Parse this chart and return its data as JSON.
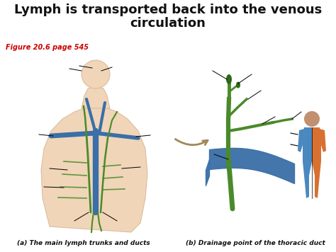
{
  "title_line1": "Lymph is transported back into the venous",
  "title_line2": "circulation",
  "title_fontsize": 13,
  "title_color": "#111111",
  "subtitle": "Figure 20.6 page 545",
  "subtitle_color": "#cc0000",
  "subtitle_fontsize": 7,
  "caption_a": "(a) The main lymph trunks and ducts",
  "caption_b": "(b) Drainage point of the thoracic duct",
  "caption_fontsize": 6.5,
  "caption_color": "#111111",
  "bg_color": "#ffffff",
  "body_fill": "#f0d5b8",
  "body_stroke": "#d8b898",
  "blue_color": "#3a6fa8",
  "green_color": "#4a8a2a",
  "arrow_color": "#a08858",
  "orange_color": "#d87030",
  "light_blue_color": "#4a88c0",
  "brown_head_color": "#c09070"
}
